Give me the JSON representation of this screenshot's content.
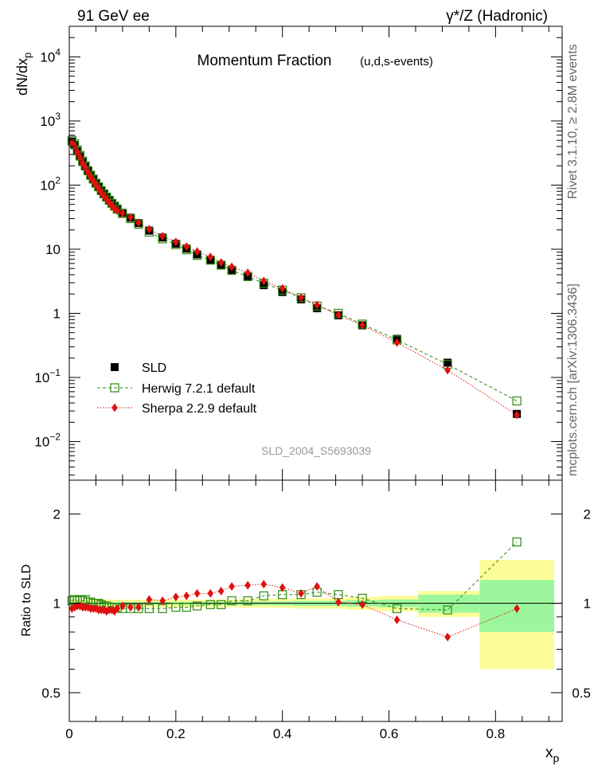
{
  "header": {
    "left_label": "91 GeV ee",
    "right_label": "γ*/Z (Hadronic)"
  },
  "side": {
    "rivet_label": "Rivet 3.1.10, ≥ 2.8M events",
    "source_label": "mcplots.cern.ch [arXiv:1306.3436]"
  },
  "chart_data": [
    {
      "type": "scatter",
      "panel": "main",
      "title": "Momentum Fraction",
      "subtitle": "(u,d,s-events)",
      "watermark": "SLD_2004_S5693039",
      "ylabel": "dN/dx_p",
      "yscale": "log",
      "ylim": [
        0.0025,
        30000
      ],
      "xlim": [
        0,
        0.925
      ],
      "y_ticks": [
        {
          "v": 0.01,
          "label": "10^-2"
        },
        {
          "v": 0.1,
          "label": "10^-1"
        },
        {
          "v": 1,
          "label": "1"
        },
        {
          "v": 10,
          "label": "10"
        },
        {
          "v": 100,
          "label": "10^2"
        },
        {
          "v": 1000,
          "label": "10^3"
        },
        {
          "v": 10000,
          "label": "10^4"
        }
      ],
      "legend_position": "bottom-left",
      "x": [
        0.005,
        0.01,
        0.015,
        0.02,
        0.025,
        0.03,
        0.035,
        0.04,
        0.045,
        0.05,
        0.055,
        0.06,
        0.065,
        0.07,
        0.075,
        0.08,
        0.085,
        0.09,
        0.1,
        0.115,
        0.13,
        0.15,
        0.175,
        0.2,
        0.22,
        0.24,
        0.265,
        0.285,
        0.305,
        0.335,
        0.365,
        0.4,
        0.435,
        0.465,
        0.505,
        0.55,
        0.615,
        0.71,
        0.84
      ],
      "series": [
        {
          "name": "SLD",
          "style": "filled-square",
          "color": "#000000",
          "values": [
            480,
            420,
            340,
            280,
            230,
            195,
            165,
            140,
            122,
            106,
            93,
            82,
            73,
            65,
            58,
            52,
            47,
            43,
            37,
            31,
            25.5,
            19.5,
            15.2,
            12.2,
            10.2,
            8.3,
            6.8,
            5.7,
            4.6,
            3.7,
            2.75,
            2.15,
            1.65,
            1.2,
            0.93,
            0.65,
            0.4,
            0.17,
            0.027
          ]
        },
        {
          "name": "Herwig 7.2.1 default",
          "style": "open-square",
          "color": "#2e8b0e",
          "values": [
            500,
            440,
            355,
            290,
            238,
            200,
            168,
            143,
            124,
            107,
            94,
            82,
            73,
            65,
            58,
            52,
            47,
            42,
            36,
            30,
            24.5,
            18.5,
            14.5,
            11.8,
            9.8,
            8.0,
            6.75,
            5.65,
            4.7,
            3.75,
            2.95,
            2.3,
            1.75,
            1.3,
            1.0,
            0.68,
            0.385,
            0.16,
            0.043
          ]
        },
        {
          "name": "Sherpa 2.2.9 default",
          "style": "filled-diamond",
          "color": "#e01010",
          "values": [
            460,
            405,
            330,
            272,
            222,
            188,
            158,
            134,
            116,
            101,
            88,
            77,
            68,
            60,
            54,
            48,
            43,
            40,
            36.5,
            31.5,
            26,
            20.5,
            16,
            13,
            11,
            9.2,
            7.6,
            6.2,
            5.3,
            4.3,
            3.2,
            2.45,
            1.75,
            1.35,
            0.95,
            0.65,
            0.35,
            0.13,
            0.026
          ]
        }
      ]
    },
    {
      "type": "scatter",
      "panel": "ratio",
      "ylabel": "Ratio to SLD",
      "xlabel": "x_p",
      "yscale": "log",
      "ylim": [
        0.4,
        2.6
      ],
      "y_ticks": [
        {
          "v": 0.5,
          "label": "0.5"
        },
        {
          "v": 1,
          "label": "1"
        },
        {
          "v": 2,
          "label": "2"
        }
      ],
      "x_ticks": [
        {
          "v": 0,
          "label": "0"
        },
        {
          "v": 0.2,
          "label": "0.2"
        },
        {
          "v": 0.4,
          "label": "0.4"
        },
        {
          "v": 0.6,
          "label": "0.6"
        },
        {
          "v": 0.8,
          "label": "0.8"
        }
      ],
      "uncertainty_bands": [
        {
          "x0": 0.0,
          "x1": 0.09,
          "stat": 0.01,
          "total": 0.03
        },
        {
          "x0": 0.09,
          "x1": 0.21,
          "stat": 0.01,
          "total": 0.03
        },
        {
          "x0": 0.21,
          "x1": 0.32,
          "stat": 0.012,
          "total": 0.03
        },
        {
          "x0": 0.32,
          "x1": 0.42,
          "stat": 0.015,
          "total": 0.035
        },
        {
          "x0": 0.42,
          "x1": 0.52,
          "stat": 0.02,
          "total": 0.04
        },
        {
          "x0": 0.52,
          "x1": 0.58,
          "stat": 0.025,
          "total": 0.05
        },
        {
          "x0": 0.58,
          "x1": 0.655,
          "stat": 0.03,
          "total": 0.06
        },
        {
          "x0": 0.655,
          "x1": 0.77,
          "stat": 0.07,
          "total": 0.1
        },
        {
          "x0": 0.77,
          "x1": 0.91,
          "stat": 0.2,
          "total": 0.4
        }
      ],
      "band_colors": {
        "stat": "#9cf79c",
        "total": "#fcfc99"
      },
      "x": [
        0.005,
        0.01,
        0.015,
        0.02,
        0.025,
        0.03,
        0.035,
        0.04,
        0.045,
        0.05,
        0.055,
        0.06,
        0.065,
        0.07,
        0.075,
        0.08,
        0.085,
        0.09,
        0.1,
        0.115,
        0.13,
        0.15,
        0.175,
        0.2,
        0.22,
        0.24,
        0.265,
        0.285,
        0.305,
        0.335,
        0.365,
        0.4,
        0.435,
        0.465,
        0.505,
        0.55,
        0.615,
        0.71,
        0.84
      ],
      "series": [
        {
          "name": "Herwig 7.2.1 default",
          "style": "open-square",
          "color": "#2e8b0e",
          "values": [
            1.02,
            1.03,
            1.02,
            1.03,
            1.02,
            1.03,
            1.01,
            1.01,
            1.0,
            1.0,
            1.0,
            0.99,
            0.98,
            0.98,
            0.97,
            0.97,
            0.97,
            0.97,
            0.96,
            0.96,
            0.96,
            0.96,
            0.96,
            0.97,
            0.97,
            0.98,
            0.99,
            0.99,
            1.02,
            1.02,
            1.06,
            1.07,
            1.07,
            1.09,
            1.07,
            1.04,
            0.96,
            0.95,
            1.61
          ]
        },
        {
          "name": "Sherpa 2.2.9 default",
          "style": "filled-diamond",
          "color": "#e01010",
          "values": [
            0.96,
            0.97,
            0.98,
            0.98,
            0.97,
            0.97,
            0.97,
            0.96,
            0.96,
            0.96,
            0.95,
            0.95,
            0.95,
            0.94,
            0.95,
            0.95,
            0.94,
            0.96,
            0.98,
            0.97,
            0.97,
            1.03,
            1.02,
            1.05,
            1.06,
            1.08,
            1.08,
            1.1,
            1.14,
            1.15,
            1.16,
            1.13,
            1.08,
            1.14,
            1.01,
            0.99,
            0.88,
            0.77,
            0.96
          ]
        }
      ]
    }
  ]
}
